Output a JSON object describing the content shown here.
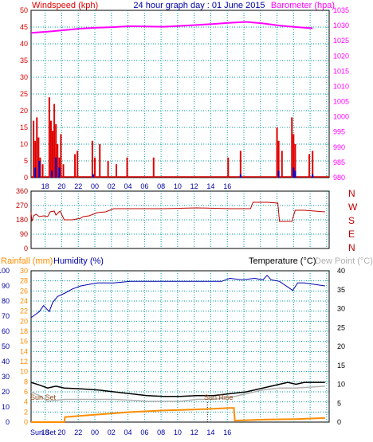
{
  "header": {
    "title": "24 hour graph day : 01 June 2015",
    "wind_label": "Windspeed (kph)",
    "baro_label": "Barometer (hpa)"
  },
  "colors": {
    "bg": "#ffffff",
    "grid": "#009a9a",
    "axis": "#000000",
    "wind": "#e00000",
    "gust": "#0000c8",
    "baro": "#ff00ff",
    "dir": "#c00000",
    "temp": "#000000",
    "dew": "#b0b0b0",
    "hum": "#0000b0",
    "rain": "#ff8c00",
    "tick_blue": "#0000a0"
  },
  "bottom_labels": {
    "rain_label": "Rainfall (mm)",
    "hum_label": "Humidity (%)",
    "temp_label": "Temperature (°C)",
    "dew_label": "Dew Point (°C)",
    "sunset": "Sun Set",
    "sunrise": "Sun Rise",
    "sunset_axis": "Sun Set"
  },
  "direction_labels": [
    "N",
    "W",
    "S",
    "E",
    "N"
  ],
  "chart_data": [
    {
      "id": "wind_baro",
      "type": "bar",
      "x_tick_labels": [
        "18",
        "20",
        "22",
        "00",
        "02",
        "04",
        "06",
        "08",
        "10",
        "12",
        "14",
        "16"
      ],
      "wind": {
        "ylim": [
          0,
          50
        ],
        "ticks": [
          0,
          5,
          10,
          15,
          20,
          25,
          30,
          35,
          40,
          45,
          50
        ],
        "values": [
          [
            0.3,
            17
          ],
          [
            0.5,
            11
          ],
          [
            0.7,
            18
          ],
          [
            0.9,
            12
          ],
          [
            1.1,
            6
          ],
          [
            1.4,
            4
          ],
          [
            2.2,
            24
          ],
          [
            2.4,
            17
          ],
          [
            2.6,
            14
          ],
          [
            2.8,
            22
          ],
          [
            3.0,
            16
          ],
          [
            3.2,
            10
          ],
          [
            3.4,
            6
          ],
          [
            3.6,
            13
          ],
          [
            3.9,
            4
          ],
          [
            5.3,
            7
          ],
          [
            5.6,
            8
          ],
          [
            7.4,
            11
          ],
          [
            7.7,
            6
          ],
          [
            8.3,
            10
          ],
          [
            9.3,
            5
          ],
          [
            10.3,
            4
          ],
          [
            11.6,
            6
          ],
          [
            14.8,
            6
          ],
          [
            23.8,
            6
          ],
          [
            25.3,
            8
          ],
          [
            29.7,
            15
          ],
          [
            29.9,
            11
          ],
          [
            30.3,
            8
          ],
          [
            31.5,
            18
          ],
          [
            31.7,
            13
          ],
          [
            31.9,
            10
          ],
          [
            33.6,
            7
          ],
          [
            34.0,
            8
          ]
        ],
        "gusts": [
          [
            0.5,
            3
          ],
          [
            1.0,
            5
          ],
          [
            2.5,
            2
          ],
          [
            3.0,
            6
          ],
          [
            3.4,
            3
          ],
          [
            7.5,
            1
          ],
          [
            25.3,
            1
          ],
          [
            29.9,
            2
          ],
          [
            31.7,
            3
          ],
          [
            31.9,
            2
          ],
          [
            34.0,
            1
          ]
        ]
      },
      "barometer": {
        "ylim": [
          980,
          1035
        ],
        "ticks": [
          980,
          985,
          990,
          995,
          1000,
          1005,
          1010,
          1015,
          1020,
          1025,
          1030,
          1035
        ],
        "points": [
          [
            0,
            1027.6
          ],
          [
            2,
            1028.0
          ],
          [
            4,
            1028.5
          ],
          [
            6,
            1029.0
          ],
          [
            8,
            1029.3
          ],
          [
            10,
            1029.5
          ],
          [
            12,
            1029.8
          ],
          [
            14,
            1029.7
          ],
          [
            16,
            1029.6
          ],
          [
            18,
            1029.9
          ],
          [
            20,
            1030.2
          ],
          [
            22,
            1030.5
          ],
          [
            24,
            1030.9
          ],
          [
            26,
            1031.2
          ],
          [
            28,
            1030.7
          ],
          [
            30,
            1030.0
          ],
          [
            32,
            1029.5
          ],
          [
            34,
            1029.1
          ]
        ]
      }
    },
    {
      "id": "direction",
      "type": "line",
      "ylim": [
        0,
        360
      ],
      "ticks": [
        0,
        90,
        180,
        270,
        360
      ],
      "points": [
        [
          0,
          225
        ],
        [
          0.1,
          170
        ],
        [
          0.3,
          205
        ],
        [
          0.6,
          215
        ],
        [
          1.0,
          200
        ],
        [
          1.5,
          205
        ],
        [
          2.0,
          200
        ],
        [
          2.3,
          230
        ],
        [
          2.8,
          235
        ],
        [
          3.0,
          210
        ],
        [
          3.5,
          235
        ],
        [
          4.0,
          180
        ],
        [
          5.0,
          180
        ],
        [
          6.0,
          190
        ],
        [
          6.3,
          200
        ],
        [
          7.0,
          205
        ],
        [
          8.0,
          225
        ],
        [
          9.0,
          230
        ],
        [
          10.0,
          250
        ],
        [
          12.0,
          250
        ],
        [
          16.0,
          250
        ],
        [
          20.0,
          255
        ],
        [
          24.0,
          250
        ],
        [
          26.5,
          250
        ],
        [
          26.8,
          290
        ],
        [
          28.5,
          290
        ],
        [
          29.8,
          285
        ],
        [
          30.0,
          170
        ],
        [
          31.5,
          170
        ],
        [
          31.9,
          240
        ],
        [
          33.0,
          240
        ],
        [
          35.5,
          230
        ]
      ]
    },
    {
      "id": "temp_hum",
      "type": "line",
      "humidity": {
        "ylim": [
          0,
          100
        ],
        "ticks": [
          0,
          10,
          20,
          30,
          40,
          50,
          60,
          70,
          80,
          90,
          100
        ],
        "points": [
          [
            0,
            69
          ],
          [
            1,
            73
          ],
          [
            1.5,
            77
          ],
          [
            2.2,
            73
          ],
          [
            2.6,
            79
          ],
          [
            3.2,
            83
          ],
          [
            4,
            85
          ],
          [
            5,
            88
          ],
          [
            6,
            90
          ],
          [
            8,
            92
          ],
          [
            10,
            92
          ],
          [
            12,
            93
          ],
          [
            14,
            93
          ],
          [
            16,
            93
          ],
          [
            20,
            93
          ],
          [
            23,
            93
          ],
          [
            24,
            95
          ],
          [
            25.5,
            94
          ],
          [
            27,
            95
          ],
          [
            28,
            94
          ],
          [
            28.5,
            97
          ],
          [
            29,
            94
          ],
          [
            30,
            93
          ],
          [
            31.6,
            87
          ],
          [
            32.2,
            92
          ],
          [
            33,
            92
          ],
          [
            35.5,
            90
          ]
        ]
      },
      "rainfall": {
        "ylim": [
          0,
          30
        ],
        "ticks": [
          0,
          2,
          4,
          6,
          8,
          10,
          12,
          14,
          16,
          18,
          20,
          22,
          24,
          26,
          28,
          30
        ],
        "points": [
          [
            0,
            0
          ],
          [
            4,
            0
          ],
          [
            4.1,
            1
          ],
          [
            8,
            1.5
          ],
          [
            12,
            2
          ],
          [
            16,
            2.3
          ],
          [
            20,
            2.5
          ],
          [
            24,
            2.8
          ],
          [
            24.5,
            2.8
          ],
          [
            24.6,
            0.3
          ],
          [
            28,
            0.5
          ],
          [
            32,
            0.6
          ],
          [
            35.5,
            0.8
          ]
        ]
      },
      "temperature": {
        "ylim": [
          0,
          40
        ],
        "ticks": [
          0,
          5,
          10,
          15,
          20,
          25,
          30,
          35,
          40
        ],
        "points": [
          [
            0,
            10.5
          ],
          [
            1,
            9.8
          ],
          [
            2,
            9.0
          ],
          [
            3,
            9.5
          ],
          [
            4,
            9.0
          ],
          [
            6,
            8.8
          ],
          [
            8,
            8.5
          ],
          [
            10,
            8.0
          ],
          [
            12,
            7.5
          ],
          [
            14,
            7.0
          ],
          [
            16,
            6.8
          ],
          [
            18,
            6.8
          ],
          [
            20,
            7.0
          ],
          [
            22,
            7.0
          ],
          [
            24,
            7.5
          ],
          [
            26,
            8.0
          ],
          [
            28,
            9.0
          ],
          [
            30,
            10.0
          ],
          [
            31,
            10.5
          ],
          [
            32,
            10.0
          ],
          [
            33,
            10.5
          ],
          [
            35.5,
            10.5
          ]
        ]
      },
      "dewpoint": {
        "points": [
          [
            0,
            8.0
          ],
          [
            1,
            7.0
          ],
          [
            2,
            5.5
          ],
          [
            3,
            5.8
          ],
          [
            4,
            6.0
          ],
          [
            6,
            6.0
          ],
          [
            8,
            6.0
          ],
          [
            10,
            6.0
          ],
          [
            12,
            5.8
          ],
          [
            14,
            5.5
          ],
          [
            16,
            5.5
          ],
          [
            18,
            5.5
          ],
          [
            20,
            6.0
          ],
          [
            22,
            6.0
          ],
          [
            24,
            6.5
          ],
          [
            26,
            7.5
          ],
          [
            28,
            8.5
          ],
          [
            30,
            9.0
          ],
          [
            32,
            9.0
          ],
          [
            35.5,
            9.5
          ]
        ]
      }
    }
  ]
}
